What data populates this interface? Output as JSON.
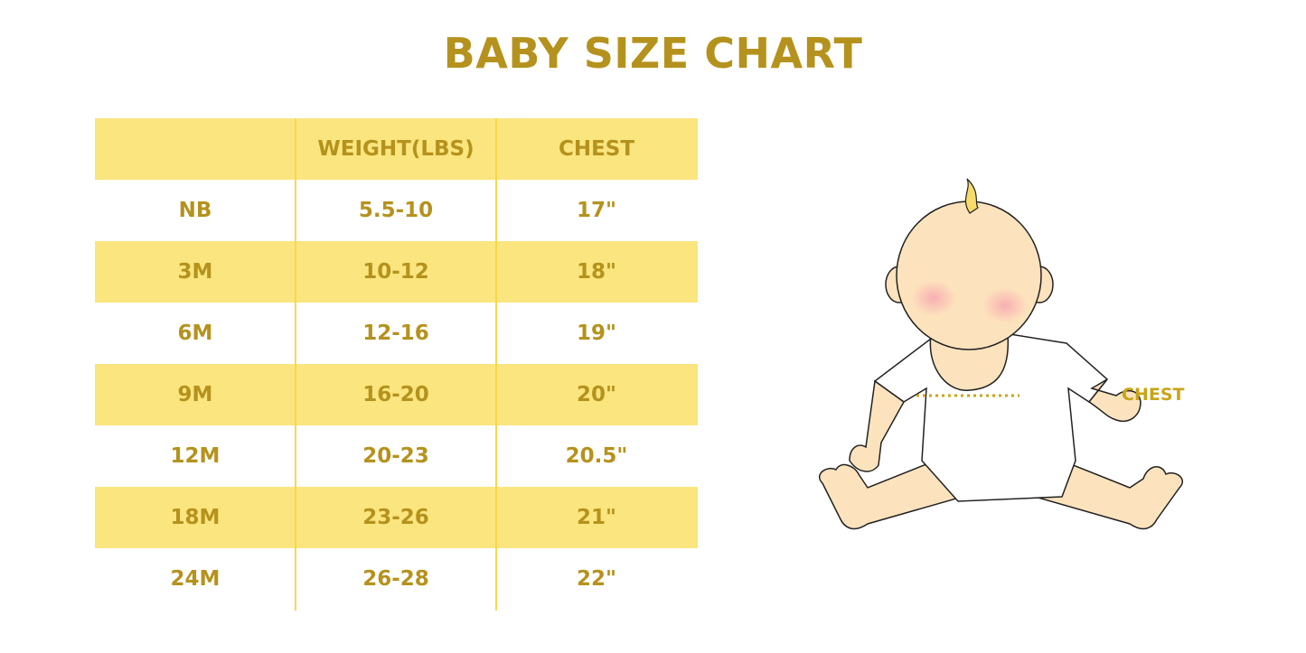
{
  "title": "BABY SIZE CHART",
  "table": {
    "headers": [
      "",
      "WEIGHT(LBS)",
      "CHEST"
    ],
    "rows": [
      [
        "NB",
        "5.5-10",
        "17\""
      ],
      [
        "3M",
        "10-12",
        "18\""
      ],
      [
        "6M",
        "12-16",
        "19\""
      ],
      [
        "9M",
        "16-20",
        "20\""
      ],
      [
        "12M",
        "20-23",
        "20.5\""
      ],
      [
        "18M",
        "23-26",
        "21\""
      ],
      [
        "24M",
        "26-28",
        "22\""
      ]
    ]
  },
  "illustration": {
    "chest_label": "CHEST"
  },
  "colors": {
    "text": "#b5921d",
    "band": "#fbe57e",
    "divider": "#f7d84a",
    "skin": "#fde3bd"
  }
}
